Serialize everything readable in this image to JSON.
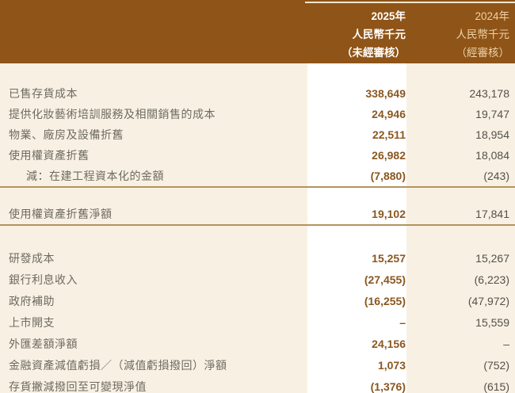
{
  "colors": {
    "header_band": "#8F5417",
    "body_background": "#F8F1E3",
    "current_column_background": "#FFFFFF",
    "rule_line": "#B5935D",
    "current_value_text": "#8B5720",
    "prior_value_text": "#54504A",
    "label_text": "#6E6A61",
    "prior_header_text": "#EDD3A9"
  },
  "header": {
    "col_2025": {
      "year": "2025年",
      "unit": "人民幣千元",
      "audit": "（未經審核）"
    },
    "col_2024": {
      "year": "2024年",
      "unit": "人民幣千元",
      "audit": "（經審核）"
    }
  },
  "table": {
    "sections": [
      {
        "rows": [
          {
            "label": "已售存貨成本",
            "v2025": "338,649",
            "v2024": "243,178"
          },
          {
            "label": "提供化妝藝術培訓服務及相關銷售的成本",
            "v2025": "24,946",
            "v2024": "19,747"
          },
          {
            "label": "物業、廠房及設備折舊",
            "v2025": "22,511",
            "v2024": "18,954"
          },
          {
            "label": "使用權資產折舊",
            "v2025": "26,982",
            "v2024": "18,084"
          },
          {
            "label": "減：在建工程資本化的金額",
            "v2025": "(7,880)",
            "v2024": "(243)"
          }
        ]
      },
      {
        "rows": [
          {
            "label": "使用權資產折舊淨額",
            "v2025": "19,102",
            "v2024": "17,841"
          }
        ]
      },
      {
        "rows": [
          {
            "label": "研發成本",
            "v2025": "15,257",
            "v2024": "15,267"
          },
          {
            "label": "銀行利息收入",
            "v2025": "(27,455)",
            "v2024": "(6,223)"
          },
          {
            "label": "政府補助",
            "v2025": "(16,255)",
            "v2024": "(47,972)"
          },
          {
            "label": "上市開支",
            "v2025": "–",
            "v2024": "15,559"
          },
          {
            "label": "外匯差額淨額",
            "v2025": "24,156",
            "v2024": "–"
          },
          {
            "label": "金融資產減值虧損／（減值虧損撥回）淨額",
            "v2025": "1,073",
            "v2024": "(752)"
          },
          {
            "label": "存貨撇減撥回至可變現淨值",
            "v2025": "(1,376)",
            "v2024": "(615)"
          }
        ]
      }
    ]
  }
}
